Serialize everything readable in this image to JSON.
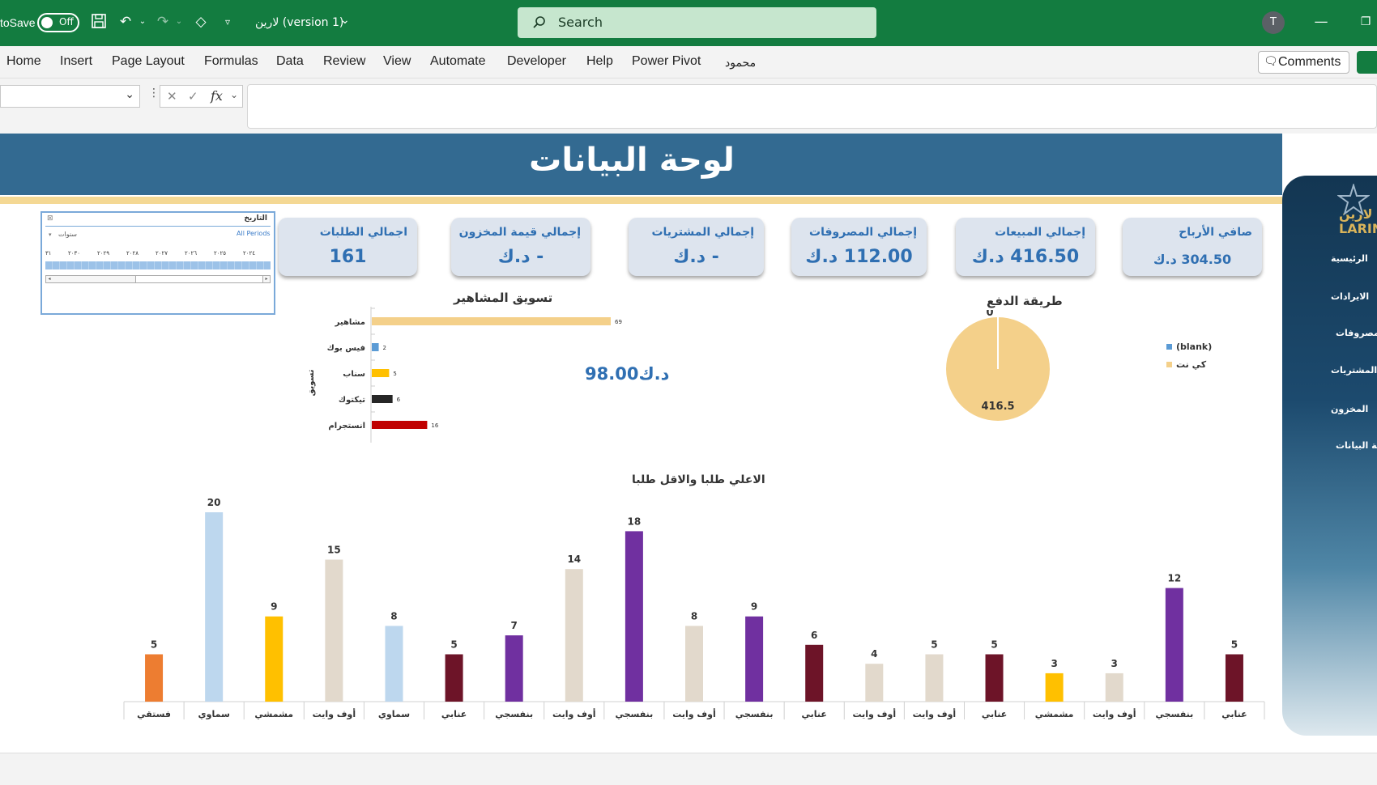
{
  "titlebar": {
    "autosave_label": "toSave",
    "toggle_label": "Off",
    "file_name": "لارين (version 1)",
    "search_placeholder": "Search",
    "avatar_initial": "T"
  },
  "ribbon": {
    "tabs": [
      "Home",
      "Insert",
      "Page Layout",
      "Formulas",
      "Data",
      "Review",
      "View",
      "Automate",
      "Developer",
      "Help",
      "Power Pivot",
      "محمود"
    ],
    "comments_label": "Comments"
  },
  "formula_bar": {
    "fx_label": "fx"
  },
  "dashboard": {
    "title": "لوحة البيانات",
    "cards": [
      {
        "title": "صافي الأرباح",
        "value": "304.50 د.ك"
      },
      {
        "title": "إجمالي المبيعات",
        "value": "416.50 د.ك"
      },
      {
        "title": "إجمالي المصروفات",
        "value": "112.00 د.ك"
      },
      {
        "title": "إجمالي المشتريات",
        "value": "- د.ك"
      },
      {
        "title": "إجمالي قيمة المخزون",
        "value": "- د.ك"
      },
      {
        "title": "اجمالي الطلبات",
        "value": "161"
      }
    ],
    "center_value": "98.00د.ك",
    "slicer": {
      "title": "التاريخ",
      "all_periods": "All Periods",
      "unit": "سنوات",
      "years": [
        "٢٠٢٤",
        "٢٠٢٥",
        "٢٠٢٦",
        "٢٠٢٧",
        "٢٠٢٨",
        "٢٠٢٩",
        "٢٠٣٠",
        "٣١"
      ]
    }
  },
  "sidenav": {
    "logo_ar": "لارين",
    "logo_en": "LARIN",
    "items": [
      "الرئيسية",
      "الايرادات",
      "المصروفات",
      "المشتريات",
      "المخزون",
      "لوحة البيانات"
    ]
  },
  "chart_data": [
    {
      "type": "bar",
      "orientation": "horizontal",
      "title": "تسويق المشاهير",
      "ylabel": "تسويق",
      "categories": [
        "مشاهير",
        "فيس بوك",
        "سناب",
        "تيكتوك",
        "انستجرام"
      ],
      "values": [
        69,
        2,
        5,
        6,
        16
      ],
      "colors": [
        "#f4d08a",
        "#5b9bd5",
        "#ffc000",
        "#262626",
        "#c00000"
      ]
    },
    {
      "type": "pie",
      "title": "طريقة الدفع",
      "categories": [
        "(blank)",
        "كي نت"
      ],
      "values": [
        0,
        416.5
      ],
      "data_labels": [
        "0",
        "416.5"
      ],
      "colors": [
        "#5b9bd5",
        "#f4d08a"
      ],
      "legend": "right"
    },
    {
      "type": "bar",
      "title": "الاعلي طلبا والاقل طلبا",
      "categories": [
        "فستقي",
        "سماوي",
        "مشمشي",
        "أوف وايت",
        "سماوي",
        "عنابي",
        "بنفسجي",
        "أوف وايت",
        "بنفسجي",
        "أوف وايت",
        "بنفسجي",
        "عنابي",
        "أوف وايت",
        "أوف وايت",
        "عنابي",
        "مشمشي",
        "أوف وايت",
        "بنفسجي",
        "عنابي"
      ],
      "values": [
        5,
        20,
        9,
        15,
        8,
        5,
        7,
        14,
        18,
        8,
        9,
        6,
        4,
        5,
        5,
        3,
        3,
        12,
        5
      ],
      "colors": [
        "#ed7d31",
        "#bdd7ee",
        "#ffc000",
        "#e2d9cc",
        "#bdd7ee",
        "#6d1428",
        "#7030a0",
        "#e2d9cc",
        "#7030a0",
        "#e2d9cc",
        "#7030a0",
        "#6d1428",
        "#e2d9cc",
        "#e2d9cc",
        "#6d1428",
        "#ffc000",
        "#e2d9cc",
        "#7030a0",
        "#6d1428"
      ],
      "ylim": [
        0,
        20
      ]
    }
  ]
}
